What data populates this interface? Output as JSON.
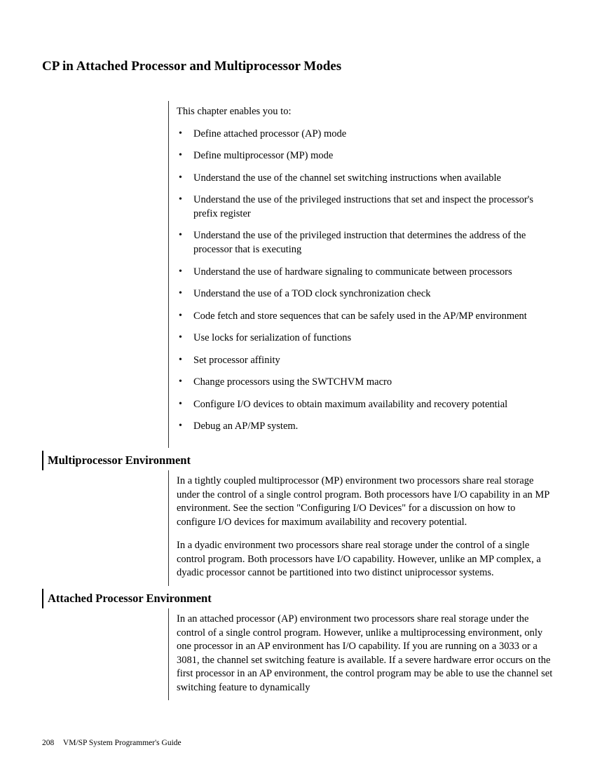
{
  "title": "CP in Attached Processor and Multiprocessor Modes",
  "intro": "This chapter enables you to:",
  "objectives": [
    "Define attached processor (AP) mode",
    "Define multiprocessor (MP) mode",
    "Understand the use of the channel set switching instructions when available",
    "Understand the use of the privileged instructions that set and inspect the processor's prefix register",
    "Understand the use of the privileged instruction that determines the address of the processor that is executing",
    "Understand the use of hardware signaling to communicate between processors",
    "Understand the use of a TOD clock synchronization check",
    "Code fetch and store sequences that can be safely used in the AP/MP environment",
    "Use locks for serialization of functions",
    "Set processor affinity",
    "Change processors using the SWTCHVM macro",
    "Configure I/O devices to obtain maximum availability and recovery potential",
    "Debug an AP/MP system."
  ],
  "section1": {
    "heading": "Multiprocessor Environment",
    "p1": "In a tightly coupled multiprocessor (MP) environment two processors share real storage under the control of a single control program. Both processors have I/O capability in an MP environment. See the section \"Configuring I/O Devices\" for a discussion on how to configure I/O devices for maximum availability and recovery potential.",
    "p2": "In a dyadic environment two processors share real storage under the control of a single control program. Both processors have I/O capability. However, unlike an MP complex, a dyadic processor cannot be partitioned into two distinct uniprocessor systems."
  },
  "section2": {
    "heading": "Attached Processor Environment",
    "p1": "In an attached processor (AP) environment two processors share real storage under the control of a single control program. However, unlike a multiprocessing environment, only one processor in an AP environment has I/O capability. If you are running on a 3033 or a 3081, the channel set switching feature is available. If a severe hardware error occurs on the first processor in an AP environment, the control program may be able to use the channel set switching feature to dynamically"
  },
  "footer": {
    "page": "208",
    "book": "VM/SP System Programmer's Guide"
  }
}
